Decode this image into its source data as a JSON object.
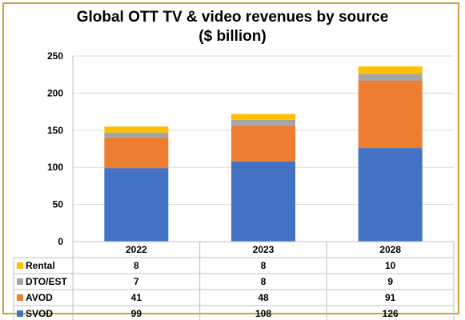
{
  "chart_data": {
    "type": "bar",
    "stacked": true,
    "title": "Global OTT TV & video revenues by source",
    "subtitle": "($ billion)",
    "categories": [
      "2022",
      "2023",
      "2028"
    ],
    "ylim": [
      0,
      250
    ],
    "yticks": [
      0,
      50,
      100,
      150,
      200,
      250
    ],
    "grid": true,
    "legend": "data-table-left",
    "series": [
      {
        "name": "SVOD",
        "values": [
          99,
          108,
          126
        ],
        "color": "#4472c4"
      },
      {
        "name": "AVOD",
        "values": [
          41,
          48,
          91
        ],
        "color": "#ed7d31"
      },
      {
        "name": "DTO/EST",
        "values": [
          7,
          8,
          9
        ],
        "color": "#a5a5a5"
      },
      {
        "name": "Rental",
        "values": [
          8,
          8,
          10
        ],
        "color": "#ffc000"
      }
    ]
  }
}
